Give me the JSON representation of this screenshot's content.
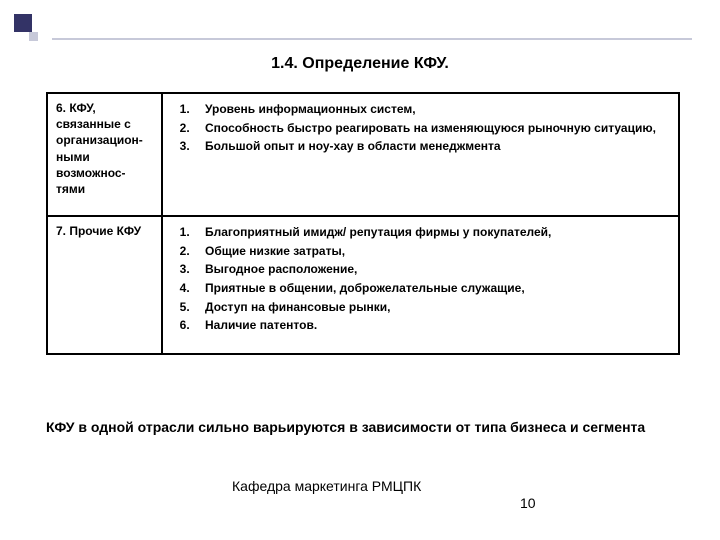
{
  "decor": {
    "big_color": "#333366",
    "small_color": "#c7c9d9",
    "line_color": "#c7c9d9"
  },
  "title": "1.4. Определение КФУ.",
  "table": {
    "border_color": "#000000",
    "rows": [
      {
        "label": "6. КФУ, связанные с организацион-ными возможнос-тями",
        "items": [
          "Уровень информационных систем,",
          "Способность быстро реагировать на изменяющуюся рыночную ситуацию,",
          "Большой опыт и ноу-хау в области менеджмента"
        ]
      },
      {
        "label": "7. Прочие КФУ",
        "items": [
          "Благоприятный имидж/ репутация фирмы у покупателей,",
          "Общие низкие затраты,",
          "Выгодное расположение,",
          "Приятные в общении, доброжелательные служащие,",
          "Доступ на финансовые рынки,",
          "Наличие патентов."
        ]
      }
    ]
  },
  "note": "КФУ в одной отрасли сильно варьируются в зависимости от типа бизнеса и сегмента",
  "footer": "Кафедра маркетинга РМЦПК",
  "page_number": "10"
}
